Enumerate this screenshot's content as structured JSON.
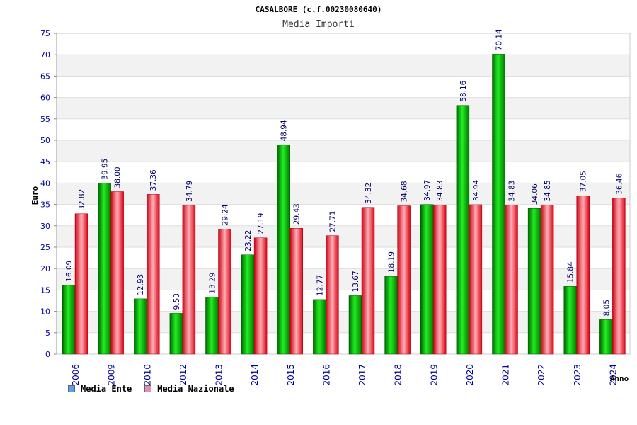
{
  "chart_data": {
    "type": "bar",
    "title": "CASALBORE (c.f.00230080640)",
    "subtitle": "Media Importi",
    "xlabel": "Anno",
    "ylabel": "Euro",
    "ylim": [
      0,
      75
    ],
    "yticks": [
      0,
      5,
      10,
      15,
      20,
      25,
      30,
      35,
      40,
      45,
      50,
      55,
      60,
      65,
      70,
      75
    ],
    "grid": true,
    "legend_position": "bottom-left",
    "categories": [
      "2006",
      "2009",
      "2010",
      "2012",
      "2013",
      "2014",
      "2015",
      "2016",
      "2017",
      "2018",
      "2019",
      "2020",
      "2021",
      "2022",
      "2023",
      "2024"
    ],
    "series": [
      {
        "name": "Media Ente",
        "color": "#00bb00",
        "legend_color": "#5aa0e8",
        "values": [
          16.09,
          39.95,
          12.93,
          9.53,
          13.29,
          23.22,
          48.94,
          12.77,
          13.67,
          18.19,
          34.97,
          58.16,
          70.14,
          34.06,
          15.84,
          8.05
        ],
        "labels": [
          "16.09",
          "39.95",
          "12.93",
          "9.53",
          "13.29",
          "23.22",
          "48.94",
          "12.77",
          "13.67",
          "18.19",
          "34.97",
          "58.16",
          "70.14",
          "34.06",
          "15.84",
          "8.05"
        ]
      },
      {
        "name": "Media Nazionale",
        "color": "#ee1122",
        "legend_color": "#e38fb4",
        "values": [
          32.82,
          38.0,
          37.36,
          34.79,
          29.24,
          27.19,
          29.43,
          27.71,
          34.32,
          34.68,
          34.83,
          34.94,
          34.83,
          34.85,
          37.05,
          36.46
        ],
        "labels": [
          "32.82",
          "38.00",
          "37.36",
          "34.79",
          "29.24",
          "27.19",
          "29.43",
          "27.71",
          "34.32",
          "34.68",
          "34.83",
          "34.94",
          "34.83",
          "34.85",
          "37.05",
          "36.46"
        ]
      }
    ]
  },
  "colors": {
    "tick_label": "#000099",
    "value_label": "#000066",
    "grid_band": "#f2f2f2",
    "grid_line": "#dddddd"
  }
}
